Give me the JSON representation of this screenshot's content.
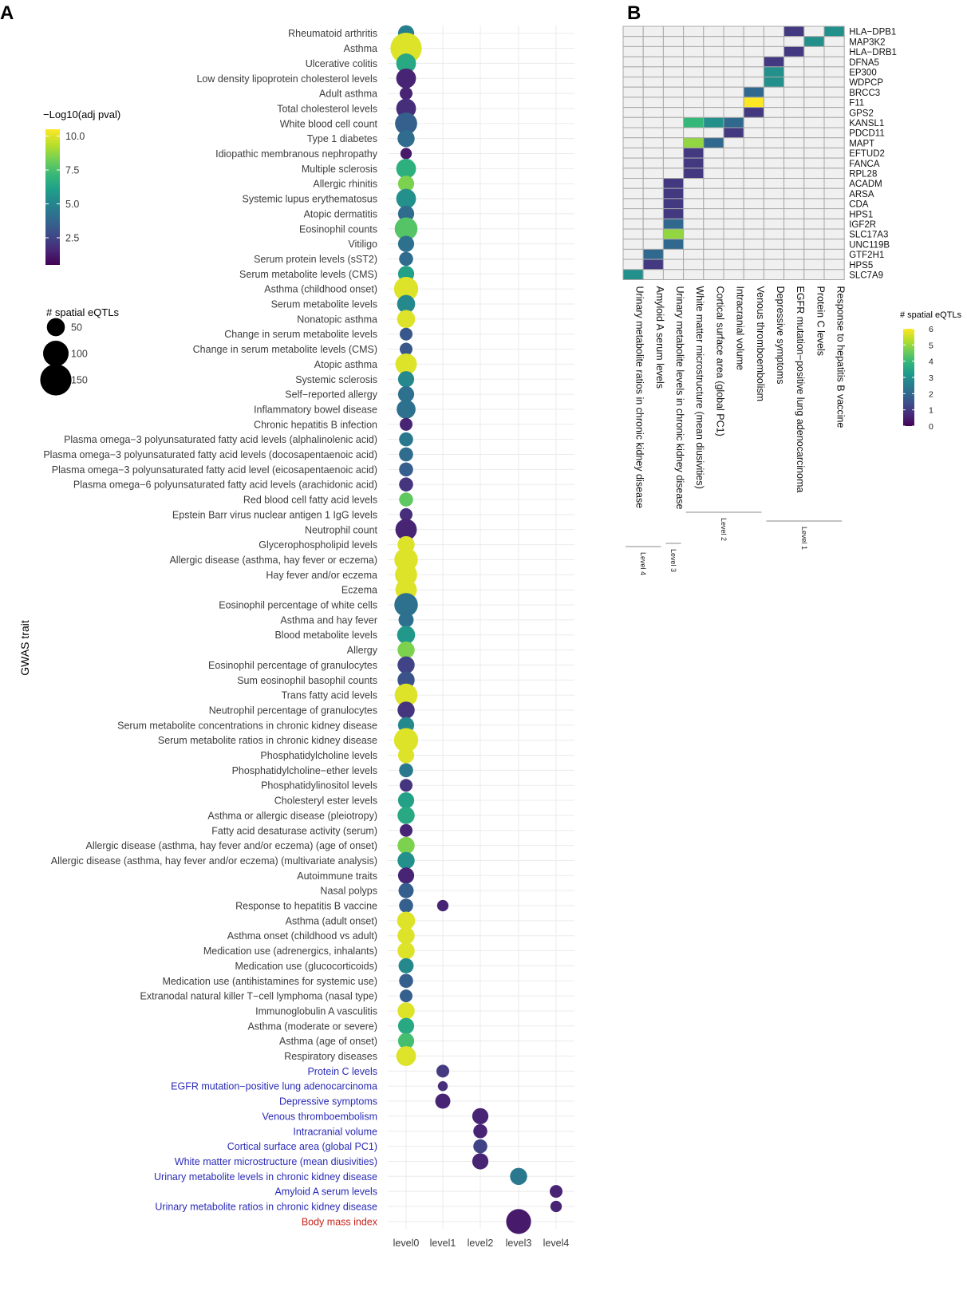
{
  "panels": {
    "a": "A",
    "b": "B"
  },
  "colors": {
    "grid": "#ebebeb",
    "label_default": "#3c3c3c",
    "label_highlight": "#2a2ab8",
    "label_special": "#c8231b",
    "viridis": [
      "#440154",
      "#482878",
      "#3e4a89",
      "#31688e",
      "#26828e",
      "#1f9e89",
      "#35b779",
      "#6ece58",
      "#b5de2b",
      "#fde725"
    ],
    "heat_empty": "#f0f0f0",
    "heat_border": "#a8a8a8"
  },
  "chart_data": [
    {
      "type": "scatter",
      "panel": "A",
      "ylabel": "GWAS trait",
      "xlabel": "",
      "x_categories": [
        "level0",
        "level1",
        "level2",
        "level3",
        "level4"
      ],
      "color_legend": {
        "title": "−Log10(adj pval)",
        "range": [
          0.5,
          10.5
        ],
        "ticks": [
          10.0,
          7.5,
          5.0,
          2.5
        ],
        "tick_labels": [
          "10.0",
          "7.5",
          "5.0",
          "2.5"
        ]
      },
      "size_legend": {
        "title": "# spatial eQTLs",
        "ticks": [
          50,
          100,
          150
        ],
        "tick_labels": [
          "50",
          "100",
          "150"
        ]
      },
      "traits": [
        {
          "name": "Rheumatoid arthritis",
          "group": "default"
        },
        {
          "name": "Asthma",
          "group": "default"
        },
        {
          "name": "Ulcerative colitis",
          "group": "default"
        },
        {
          "name": "Low density lipoprotein cholesterol levels",
          "group": "default"
        },
        {
          "name": "Adult asthma",
          "group": "default"
        },
        {
          "name": "Total cholesterol levels",
          "group": "default"
        },
        {
          "name": "White blood cell count",
          "group": "default"
        },
        {
          "name": "Type 1 diabetes",
          "group": "default"
        },
        {
          "name": "Idiopathic membranous nephropathy",
          "group": "default"
        },
        {
          "name": "Multiple sclerosis",
          "group": "default"
        },
        {
          "name": "Allergic rhinitis",
          "group": "default"
        },
        {
          "name": "Systemic lupus erythematosus",
          "group": "default"
        },
        {
          "name": "Atopic dermatitis",
          "group": "default"
        },
        {
          "name": "Eosinophil counts",
          "group": "default"
        },
        {
          "name": "Vitiligo",
          "group": "default"
        },
        {
          "name": "Serum protein levels (sST2)",
          "group": "default"
        },
        {
          "name": "Serum metabolite levels (CMS)",
          "group": "default"
        },
        {
          "name": "Asthma (childhood onset)",
          "group": "default"
        },
        {
          "name": "Serum metabolite levels",
          "group": "default"
        },
        {
          "name": "Nonatopic asthma",
          "group": "default"
        },
        {
          "name": "Change in serum metabolite levels",
          "group": "default"
        },
        {
          "name": "Change in serum metabolite levels (CMS)",
          "group": "default"
        },
        {
          "name": "Atopic asthma",
          "group": "default"
        },
        {
          "name": "Systemic sclerosis",
          "group": "default"
        },
        {
          "name": "Self−reported allergy",
          "group": "default"
        },
        {
          "name": "Inflammatory bowel disease",
          "group": "default"
        },
        {
          "name": "Chronic hepatitis B infection",
          "group": "default"
        },
        {
          "name": "Plasma omega−3 polyunsaturated fatty acid levels (alphalinolenic acid)",
          "group": "default"
        },
        {
          "name": "Plasma omega−3 polyunsaturated fatty acid levels (docosapentaenoic acid)",
          "group": "default"
        },
        {
          "name": "Plasma omega−3 polyunsaturated fatty acid level (eicosapentaenoic acid)",
          "group": "default"
        },
        {
          "name": "Plasma omega−6 polyunsaturated fatty acid levels (arachidonic acid)",
          "group": "default"
        },
        {
          "name": "Red blood cell fatty acid levels",
          "group": "default"
        },
        {
          "name": "Epstein Barr virus nuclear antigen 1 IgG levels",
          "group": "default"
        },
        {
          "name": "Neutrophil count",
          "group": "default"
        },
        {
          "name": "Glycerophospholipid levels",
          "group": "default"
        },
        {
          "name": "Allergic disease (asthma, hay fever or eczema)",
          "group": "default"
        },
        {
          "name": "Hay fever and/or eczema",
          "group": "default"
        },
        {
          "name": "Eczema",
          "group": "default"
        },
        {
          "name": "Eosinophil percentage of white cells",
          "group": "default"
        },
        {
          "name": "Asthma and hay fever",
          "group": "default"
        },
        {
          "name": "Blood metabolite levels",
          "group": "default"
        },
        {
          "name": "Allergy",
          "group": "default"
        },
        {
          "name": "Eosinophil percentage of granulocytes",
          "group": "default"
        },
        {
          "name": "Sum eosinophil basophil counts",
          "group": "default"
        },
        {
          "name": "Trans fatty acid levels",
          "group": "default"
        },
        {
          "name": "Neutrophil percentage of granulocytes",
          "group": "default"
        },
        {
          "name": "Serum metabolite concentrations in chronic kidney disease",
          "group": "default"
        },
        {
          "name": "Serum metabolite ratios in chronic kidney disease",
          "group": "default"
        },
        {
          "name": "Phosphatidylcholine levels",
          "group": "default"
        },
        {
          "name": "Phosphatidylcholine−ether levels",
          "group": "default"
        },
        {
          "name": "Phosphatidylinositol levels",
          "group": "default"
        },
        {
          "name": "Cholesteryl ester levels",
          "group": "default"
        },
        {
          "name": "Asthma or allergic disease (pleiotropy)",
          "group": "default"
        },
        {
          "name": "Fatty acid desaturase activity (serum)",
          "group": "default"
        },
        {
          "name": "Allergic disease (asthma, hay fever and/or eczema) (age of onset)",
          "group": "default"
        },
        {
          "name": "Allergic disease (asthma, hay fever and/or eczema) (multivariate analysis)",
          "group": "default"
        },
        {
          "name": "Autoimmune traits",
          "group": "default"
        },
        {
          "name": "Nasal polyps",
          "group": "default"
        },
        {
          "name": "Response to hepatitis B vaccine",
          "group": "default"
        },
        {
          "name": "Asthma (adult onset)",
          "group": "default"
        },
        {
          "name": "Asthma onset (childhood vs adult)",
          "group": "default"
        },
        {
          "name": "Medication use (adrenergics, inhalants)",
          "group": "default"
        },
        {
          "name": "Medication use (glucocorticoids)",
          "group": "default"
        },
        {
          "name": "Medication use (antihistamines for systemic use)",
          "group": "default"
        },
        {
          "name": "Extranodal natural killer T−cell lymphoma (nasal type)",
          "group": "default"
        },
        {
          "name": "Immunoglobulin A vasculitis",
          "group": "default"
        },
        {
          "name": "Asthma (moderate or severe)",
          "group": "default"
        },
        {
          "name": "Asthma (age of onset)",
          "group": "default"
        },
        {
          "name": "Respiratory diseases",
          "group": "default"
        },
        {
          "name": "Protein C levels",
          "group": "highlight"
        },
        {
          "name": "EGFR mutation−positive lung adenocarcinoma",
          "group": "highlight"
        },
        {
          "name": "Depressive symptoms",
          "group": "highlight"
        },
        {
          "name": "Venous thromboembolism",
          "group": "highlight"
        },
        {
          "name": "Intracranial volume",
          "group": "highlight"
        },
        {
          "name": "Cortical surface area (global PC1)",
          "group": "highlight"
        },
        {
          "name": "White matter microstructure (mean diusivities)",
          "group": "highlight"
        },
        {
          "name": "Urinary metabolite levels in chronic kidney disease",
          "group": "highlight"
        },
        {
          "name": "Amyloid A serum levels",
          "group": "highlight"
        },
        {
          "name": "Urinary metabolite ratios in chronic kidney disease",
          "group": "highlight"
        },
        {
          "name": "Body mass index",
          "group": "special"
        }
      ],
      "points": [
        [
          0,
          0,
          4.8,
          40
        ],
        [
          1,
          0,
          10.0,
          150
        ],
        [
          2,
          0,
          6.5,
          60
        ],
        [
          3,
          0,
          1.5,
          60
        ],
        [
          4,
          0,
          1.5,
          25
        ],
        [
          5,
          0,
          1.8,
          60
        ],
        [
          6,
          0,
          3.5,
          75
        ],
        [
          7,
          0,
          4.0,
          45
        ],
        [
          8,
          0,
          1.2,
          20
        ],
        [
          9,
          0,
          6.8,
          60
        ],
        [
          10,
          0,
          8.5,
          40
        ],
        [
          11,
          0,
          5.5,
          60
        ],
        [
          12,
          0,
          4.0,
          40
        ],
        [
          13,
          0,
          7.8,
          80
        ],
        [
          14,
          0,
          4.2,
          40
        ],
        [
          15,
          0,
          4.0,
          30
        ],
        [
          16,
          0,
          6.2,
          40
        ],
        [
          17,
          0,
          10.0,
          90
        ],
        [
          18,
          0,
          5.2,
          50
        ],
        [
          19,
          0,
          10.0,
          50
        ],
        [
          20,
          0,
          3.2,
          25
        ],
        [
          21,
          0,
          3.2,
          25
        ],
        [
          22,
          0,
          10.0,
          70
        ],
        [
          23,
          0,
          5.2,
          40
        ],
        [
          24,
          0,
          4.2,
          40
        ],
        [
          25,
          0,
          4.2,
          55
        ],
        [
          26,
          0,
          1.5,
          25
        ],
        [
          27,
          0,
          4.5,
          30
        ],
        [
          28,
          0,
          4.0,
          30
        ],
        [
          29,
          0,
          3.5,
          30
        ],
        [
          30,
          0,
          2.0,
          30
        ],
        [
          31,
          0,
          8.0,
          30
        ],
        [
          32,
          0,
          1.8,
          25
        ],
        [
          33,
          0,
          1.5,
          70
        ],
        [
          34,
          0,
          10.0,
          45
        ],
        [
          35,
          0,
          10.0,
          85
        ],
        [
          36,
          0,
          10.0,
          75
        ],
        [
          37,
          0,
          10.0,
          70
        ],
        [
          38,
          0,
          4.2,
          85
        ],
        [
          39,
          0,
          4.2,
          35
        ],
        [
          40,
          0,
          5.8,
          50
        ],
        [
          41,
          0,
          8.5,
          45
        ],
        [
          42,
          0,
          2.5,
          45
        ],
        [
          43,
          0,
          3.0,
          45
        ],
        [
          44,
          0,
          10.0,
          80
        ],
        [
          45,
          0,
          2.0,
          45
        ],
        [
          46,
          0,
          5.2,
          40
        ],
        [
          47,
          0,
          10.0,
          90
        ],
        [
          48,
          0,
          10.0,
          40
        ],
        [
          49,
          0,
          4.5,
          30
        ],
        [
          50,
          0,
          2.0,
          25
        ],
        [
          51,
          0,
          6.2,
          40
        ],
        [
          52,
          0,
          6.5,
          45
        ],
        [
          53,
          0,
          1.5,
          25
        ],
        [
          54,
          0,
          8.5,
          45
        ],
        [
          55,
          0,
          5.5,
          45
        ],
        [
          56,
          0,
          1.5,
          40
        ],
        [
          57,
          0,
          3.5,
          35
        ],
        [
          58,
          0,
          3.5,
          30
        ],
        [
          58,
          1,
          1.5,
          20
        ],
        [
          59,
          0,
          10.0,
          50
        ],
        [
          60,
          0,
          10.0,
          45
        ],
        [
          61,
          0,
          10.0,
          45
        ],
        [
          62,
          0,
          5.2,
          35
        ],
        [
          63,
          0,
          3.5,
          30
        ],
        [
          64,
          0,
          3.5,
          25
        ],
        [
          65,
          0,
          10.0,
          45
        ],
        [
          66,
          0,
          6.5,
          40
        ],
        [
          67,
          0,
          7.5,
          40
        ],
        [
          68,
          0,
          10.0,
          60
        ],
        [
          69,
          1,
          2.2,
          25
        ],
        [
          70,
          1,
          1.8,
          15
        ],
        [
          71,
          1,
          1.5,
          35
        ],
        [
          72,
          2,
          1.5,
          40
        ],
        [
          73,
          2,
          1.5,
          30
        ],
        [
          74,
          2,
          2.5,
          30
        ],
        [
          75,
          2,
          1.5,
          40
        ],
        [
          76,
          3,
          4.5,
          45
        ],
        [
          77,
          4,
          1.5,
          25
        ],
        [
          78,
          4,
          1.5,
          20
        ],
        [
          79,
          3,
          1.2,
          95
        ]
      ]
    },
    {
      "type": "heatmap",
      "panel": "B",
      "genes": [
        "HLA−DPB1",
        "MAP3K2",
        "HLA−DRB1",
        "DFNA5",
        "EP300",
        "WDPCP",
        "BRCC3",
        "F11",
        "GPS2",
        "KANSL1",
        "PDCD11",
        "MAPT",
        "EFTUD2",
        "FANCA",
        "RPL28",
        "ACADM",
        "ARSA",
        "CDA",
        "HPS1",
        "IGF2R",
        "SLC17A3",
        "UNC119B",
        "GTF2H1",
        "HPS5",
        "SLC7A9"
      ],
      "traits": [
        "Urinary metabolite ratios in chronic kidney disease",
        "Amyloid A serum levels",
        "Urinary metabolite levels in chronic kidney disease",
        "White matter microstructure (mean diusivities)",
        "Cortical surface area (global PC1)",
        "Intracranial volume",
        "Venous thromboembolism",
        "Depressive symptoms",
        "EGFR mutation−positive lung adenocarcinoma",
        "Protein C levels",
        "Response to hepatitis B vaccine"
      ],
      "legend": {
        "title": "# spatial eQTLs",
        "range": [
          0,
          6
        ],
        "ticks": [
          "6",
          "5",
          "4",
          "3",
          "2",
          "1",
          "0"
        ]
      },
      "groups": [
        {
          "label": "Level 4",
          "from": 0,
          "to": 1
        },
        {
          "label": "Level 3",
          "from": 2,
          "to": 2
        },
        {
          "label": "Level 2",
          "from": 3,
          "to": 6
        },
        {
          "label": "Level 1",
          "from": 7,
          "to": 10
        }
      ],
      "cells": [
        [
          0,
          8,
          1
        ],
        [
          0,
          10,
          3
        ],
        [
          1,
          9,
          3
        ],
        [
          2,
          8,
          1
        ],
        [
          3,
          7,
          1
        ],
        [
          4,
          7,
          3
        ],
        [
          5,
          7,
          3
        ],
        [
          6,
          6,
          2
        ],
        [
          7,
          6,
          6
        ],
        [
          8,
          6,
          1
        ],
        [
          9,
          3,
          4
        ],
        [
          9,
          4,
          3
        ],
        [
          9,
          5,
          2
        ],
        [
          10,
          5,
          1
        ],
        [
          11,
          3,
          5
        ],
        [
          11,
          4,
          2
        ],
        [
          12,
          3,
          1
        ],
        [
          13,
          3,
          1
        ],
        [
          14,
          3,
          1
        ],
        [
          15,
          2,
          1
        ],
        [
          16,
          2,
          1
        ],
        [
          17,
          2,
          1
        ],
        [
          18,
          2,
          1
        ],
        [
          19,
          2,
          2
        ],
        [
          20,
          2,
          5
        ],
        [
          21,
          2,
          2
        ],
        [
          22,
          1,
          2
        ],
        [
          23,
          1,
          1
        ],
        [
          24,
          0,
          3
        ]
      ]
    }
  ]
}
